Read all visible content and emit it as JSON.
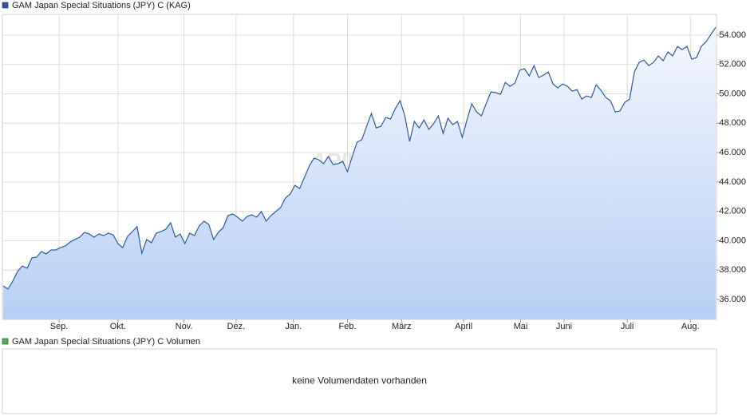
{
  "chart_data": [
    {
      "type": "line",
      "series": [
        {
          "name": "GAM Japan Special Situations (JPY) C (KAG)",
          "color": "#2b5aa8",
          "values": [
            36.92,
            36.71,
            37.25,
            37.9,
            38.28,
            38.12,
            38.83,
            38.88,
            39.26,
            39.1,
            39.37,
            39.37,
            39.53,
            39.64,
            39.91,
            40.08,
            40.24,
            40.57,
            40.46,
            40.24,
            40.46,
            40.35,
            40.51,
            40.4,
            39.8,
            39.53,
            40.29,
            40.62,
            40.95,
            39.15,
            40.08,
            39.86,
            40.51,
            40.62,
            40.78,
            41.22,
            40.24,
            40.46,
            39.8,
            40.51,
            40.35,
            41.0,
            41.33,
            41.11,
            40.08,
            40.57,
            40.89,
            41.71,
            41.82,
            41.6,
            41.33,
            41.65,
            41.76,
            41.6,
            41.98,
            41.33,
            41.71,
            41.98,
            42.25,
            42.9,
            43.17,
            43.77,
            43.55,
            44.32,
            45.08,
            45.62,
            45.51,
            45.24,
            45.73,
            45.18,
            45.24,
            45.4,
            44.7,
            45.73,
            46.71,
            46.87,
            47.79,
            48.66,
            47.68,
            47.79,
            48.39,
            48.28,
            48.99,
            49.53,
            48.5,
            46.76,
            48.12,
            47.68,
            48.23,
            47.58,
            47.96,
            48.5,
            47.3,
            48.34,
            47.9,
            48.12,
            47.03,
            48.23,
            49.32,
            48.77,
            48.5,
            49.32,
            50.13,
            50.08,
            49.97,
            50.78,
            50.51,
            50.73,
            51.6,
            51.71,
            51.22,
            51.92,
            51.11,
            51.27,
            51.49,
            50.67,
            50.4,
            50.67,
            50.51,
            50.18,
            50.29,
            49.64,
            49.86,
            49.75,
            50.62,
            50.24,
            49.75,
            49.53,
            48.77,
            48.83,
            49.42,
            49.64,
            51.49,
            52.14,
            52.3,
            51.92,
            52.14,
            52.58,
            52.25,
            52.85,
            52.58,
            53.23,
            53.01,
            53.23,
            52.36,
            52.47,
            53.23,
            53.55,
            54.04,
            54.53
          ]
        }
      ],
      "watermark": "ARIVA.DE",
      "xlim": [
        0,
        149
      ],
      "xticks": [
        {
          "value": 11.7,
          "label": "Sep."
        },
        {
          "value": 24,
          "label": "Okt."
        },
        {
          "value": 37.8,
          "label": "Nov."
        },
        {
          "value": 48.7,
          "label": "Dez."
        },
        {
          "value": 60.7,
          "label": "Jan."
        },
        {
          "value": 72,
          "label": "Feb."
        },
        {
          "value": 83.3,
          "label": "März"
        },
        {
          "value": 96.3,
          "label": "April"
        },
        {
          "value": 108.2,
          "label": "Mai"
        },
        {
          "value": 117.3,
          "label": "Juni"
        },
        {
          "value": 130.5,
          "label": "Juli"
        },
        {
          "value": 143.7,
          "label": "Aug."
        }
      ],
      "ylim": [
        34.64,
        55.41
      ],
      "yticks": [
        {
          "value": 36,
          "label": "36.000"
        },
        {
          "value": 38,
          "label": "38.000"
        },
        {
          "value": 40,
          "label": "40.000"
        },
        {
          "value": 42,
          "label": "42.000"
        },
        {
          "value": 44,
          "label": "44.000"
        },
        {
          "value": 46,
          "label": "46.000"
        },
        {
          "value": 48,
          "label": "48.000"
        },
        {
          "value": 50,
          "label": "50.000"
        },
        {
          "value": 52,
          "label": "52.000"
        },
        {
          "value": 54,
          "label": "54.000"
        }
      ],
      "grid": true
    },
    {
      "type": "bar",
      "series": [
        {
          "name": "GAM Japan Special Situations (JPY) C Volumen",
          "color": "#4caf50",
          "values": []
        }
      ],
      "note": "keine Volumendaten vorhanden"
    }
  ]
}
